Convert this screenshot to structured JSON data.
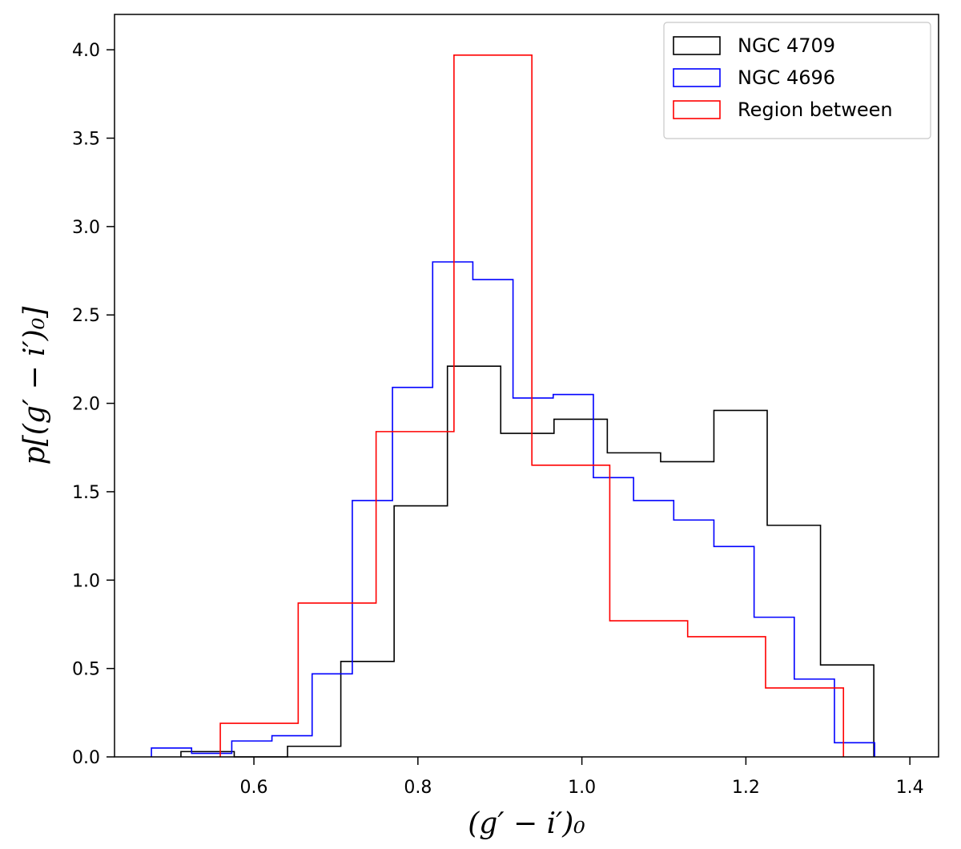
{
  "chart_data": {
    "type": "histogram-step",
    "title": "",
    "xlabel": "(g′ − i′)₀",
    "ylabel": "p[(g′ − i′)₀]",
    "xlim": [
      0.43,
      1.435
    ],
    "ylim": [
      0.0,
      4.2
    ],
    "xticks": [
      0.6,
      0.8,
      1.0,
      1.2,
      1.4
    ],
    "xtick_labels": [
      "0.6",
      "0.8",
      "1.0",
      "1.2",
      "1.4"
    ],
    "yticks": [
      0.0,
      0.5,
      1.0,
      1.5,
      2.0,
      2.5,
      3.0,
      3.5,
      4.0
    ],
    "ytick_labels": [
      "0.0",
      "0.5",
      "1.0",
      "1.5",
      "2.0",
      "2.5",
      "3.0",
      "3.5",
      "4.0"
    ],
    "legend_position": "top-right",
    "series": [
      {
        "name": "NGC 4709",
        "color": "#000000",
        "edges": [
          0.511,
          0.576,
          0.641,
          0.706,
          0.771,
          0.836,
          0.901,
          0.966,
          1.031,
          1.096,
          1.161,
          1.226,
          1.291,
          1.356
        ],
        "values": [
          0.03,
          0.0,
          0.06,
          0.54,
          1.42,
          2.21,
          1.83,
          1.91,
          1.72,
          1.67,
          1.96,
          1.31,
          0.52
        ]
      },
      {
        "name": "NGC 4696",
        "color": "#0000ff",
        "edges": [
          0.475,
          0.524,
          0.573,
          0.622,
          0.671,
          0.72,
          0.769,
          0.818,
          0.867,
          0.916,
          0.965,
          1.014,
          1.063,
          1.112,
          1.161,
          1.21,
          1.259,
          1.308,
          1.357
        ],
        "values": [
          0.05,
          0.02,
          0.09,
          0.12,
          0.47,
          1.45,
          2.09,
          2.8,
          2.7,
          2.03,
          2.05,
          1.58,
          1.45,
          1.34,
          1.19,
          0.79,
          0.44,
          0.08
        ]
      },
      {
        "name": "Region between",
        "color": "#ff0000",
        "edges": [
          0.559,
          0.654,
          0.749,
          0.844,
          0.939,
          1.034,
          1.129,
          1.224,
          1.319
        ],
        "values": [
          0.19,
          0.87,
          1.84,
          3.97,
          1.65,
          0.77,
          0.68,
          0.39
        ]
      }
    ]
  }
}
